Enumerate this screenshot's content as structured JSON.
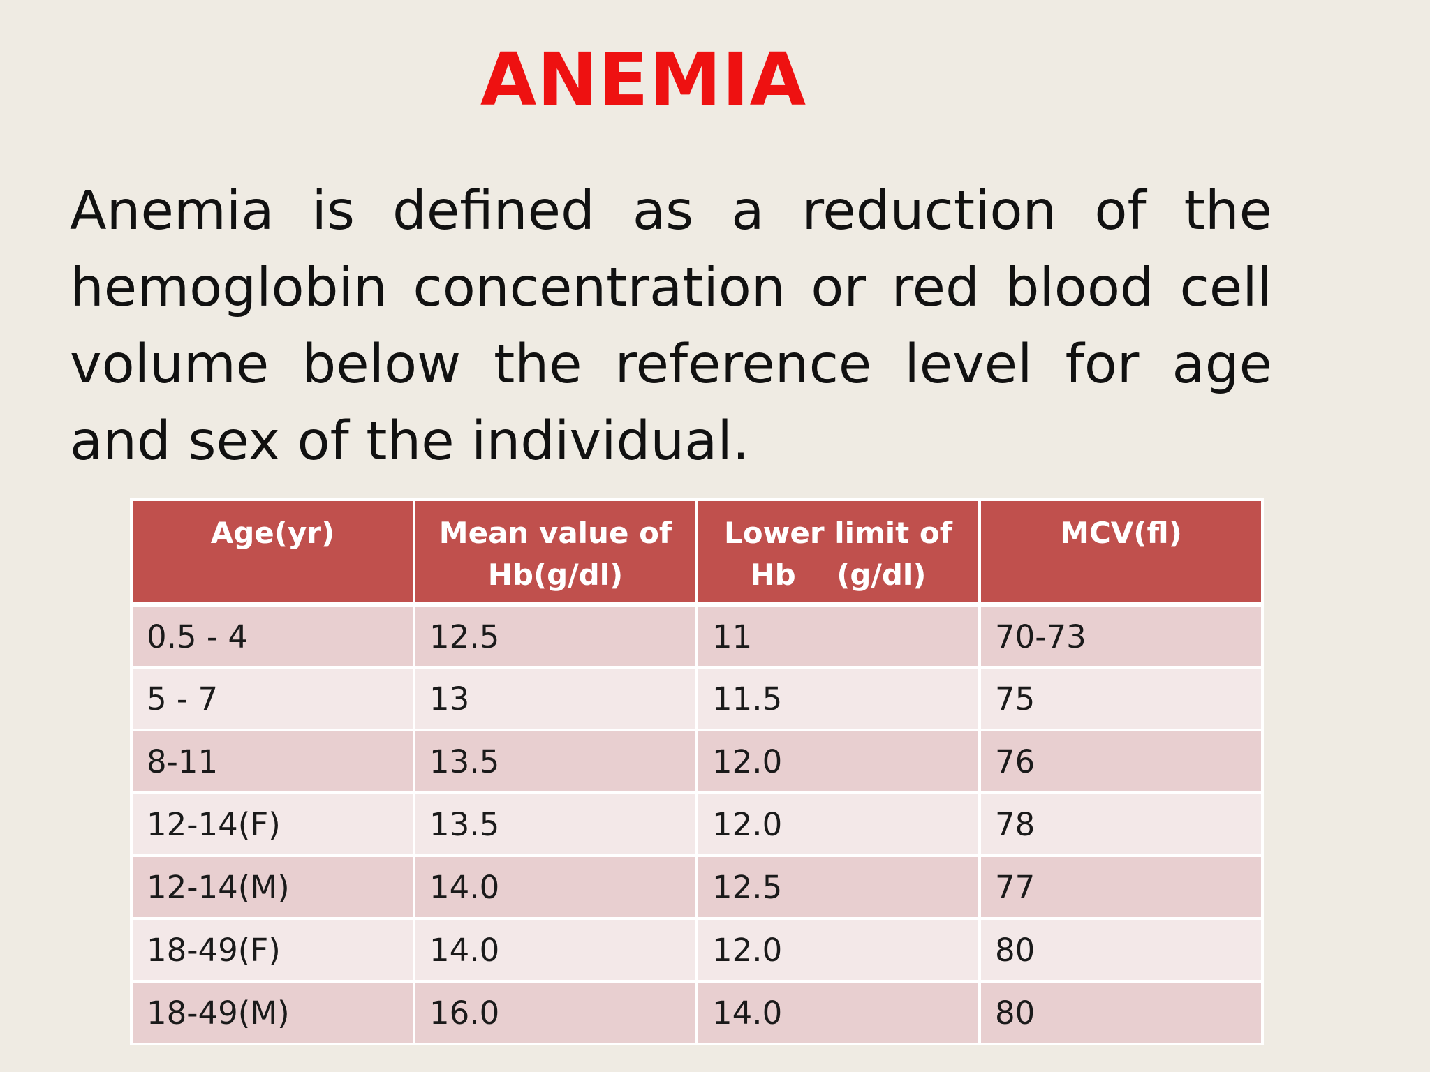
{
  "slide": {
    "title": "ANEMIA",
    "definition": "Anemia is defined as a reduction of the hemoglobin concentration or red blood cell volume below the reference level for age and sex of the individual."
  },
  "table": {
    "headers": [
      "Age(yr)",
      "Mean value of Hb(g/dl)",
      "Lower limit of Hb    (g/dl)",
      "MCV(fl)"
    ],
    "rows": [
      [
        "0.5 - 4",
        "12.5",
        "11",
        "70-73"
      ],
      [
        "5 - 7",
        "13",
        "11.5",
        "75"
      ],
      [
        "8-11",
        "13.5",
        "12.0",
        "76"
      ],
      [
        "12-14(F)",
        "13.5",
        "12.0",
        "78"
      ],
      [
        "12-14(M)",
        "14.0",
        "12.5",
        "77"
      ],
      [
        "18-49(F)",
        "14.0",
        "12.0",
        "80"
      ],
      [
        "18-49(M)",
        "16.0",
        "14.0",
        "80"
      ]
    ]
  },
  "colors": {
    "title": "#ee1111",
    "header_bg": "#c0504d",
    "row_odd": "#e8cfd0",
    "row_even": "#f3e8e8",
    "background": "#efebe3"
  }
}
